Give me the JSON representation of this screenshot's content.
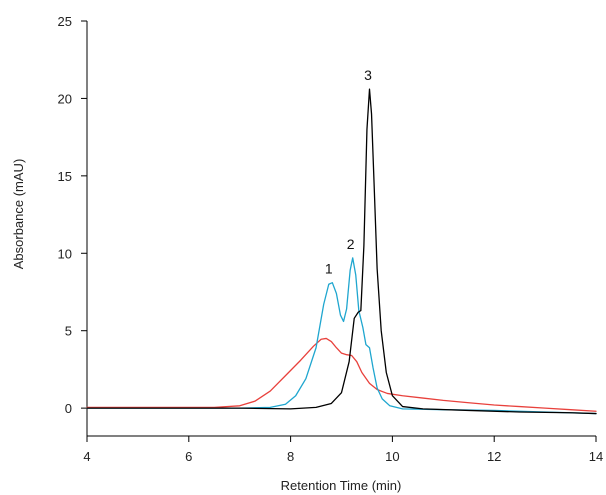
{
  "chart_data": {
    "type": "line",
    "xlabel": "Retention Time (min)",
    "ylabel": "Absorbance (mAU)",
    "xlim": [
      4,
      14
    ],
    "ylim": [
      -1.8,
      25
    ],
    "x_ticks": [
      4,
      6,
      8,
      10,
      12,
      14
    ],
    "y_ticks": [
      0,
      5,
      10,
      15,
      20,
      25
    ],
    "grid": false,
    "series": [
      {
        "color": "#e8413c",
        "points": [
          [
            4.0,
            0.05
          ],
          [
            5.0,
            0.05
          ],
          [
            6.0,
            0.05
          ],
          [
            6.5,
            0.05
          ],
          [
            7.0,
            0.15
          ],
          [
            7.3,
            0.45
          ],
          [
            7.6,
            1.1
          ],
          [
            7.9,
            2.1
          ],
          [
            8.2,
            3.1
          ],
          [
            8.45,
            4.0
          ],
          [
            8.6,
            4.45
          ],
          [
            8.7,
            4.5
          ],
          [
            8.8,
            4.3
          ],
          [
            8.9,
            3.9
          ],
          [
            9.0,
            3.55
          ],
          [
            9.1,
            3.45
          ],
          [
            9.2,
            3.4
          ],
          [
            9.3,
            3.0
          ],
          [
            9.4,
            2.3
          ],
          [
            9.55,
            1.6
          ],
          [
            9.7,
            1.2
          ],
          [
            9.9,
            0.95
          ],
          [
            10.2,
            0.8
          ],
          [
            10.6,
            0.65
          ],
          [
            11.0,
            0.5
          ],
          [
            11.5,
            0.35
          ],
          [
            12.0,
            0.2
          ],
          [
            12.5,
            0.1
          ],
          [
            13.0,
            0.0
          ],
          [
            13.5,
            -0.1
          ],
          [
            14.0,
            -0.2
          ]
        ]
      },
      {
        "color": "#1fa6cf",
        "points": [
          [
            4.0,
            0.0
          ],
          [
            6.0,
            0.0
          ],
          [
            7.0,
            0.0
          ],
          [
            7.6,
            0.05
          ],
          [
            7.9,
            0.25
          ],
          [
            8.1,
            0.8
          ],
          [
            8.3,
            1.9
          ],
          [
            8.5,
            3.9
          ],
          [
            8.65,
            6.7
          ],
          [
            8.75,
            8.0
          ],
          [
            8.82,
            8.1
          ],
          [
            8.9,
            7.4
          ],
          [
            8.98,
            6.0
          ],
          [
            9.04,
            5.6
          ],
          [
            9.1,
            6.4
          ],
          [
            9.17,
            8.9
          ],
          [
            9.22,
            9.7
          ],
          [
            9.28,
            8.6
          ],
          [
            9.34,
            6.3
          ],
          [
            9.42,
            5.2
          ],
          [
            9.48,
            4.1
          ],
          [
            9.55,
            3.9
          ],
          [
            9.62,
            2.6
          ],
          [
            9.7,
            1.3
          ],
          [
            9.8,
            0.6
          ],
          [
            9.95,
            0.15
          ],
          [
            10.2,
            -0.05
          ],
          [
            11.0,
            -0.1
          ],
          [
            12.0,
            -0.15
          ],
          [
            13.0,
            -0.25
          ],
          [
            14.0,
            -0.35
          ]
        ]
      },
      {
        "color": "#000000",
        "points": [
          [
            4.0,
            0.0
          ],
          [
            6.0,
            0.0
          ],
          [
            7.0,
            0.0
          ],
          [
            8.0,
            -0.05
          ],
          [
            8.5,
            0.05
          ],
          [
            8.8,
            0.3
          ],
          [
            9.0,
            1.0
          ],
          [
            9.15,
            3.0
          ],
          [
            9.25,
            5.8
          ],
          [
            9.33,
            6.2
          ],
          [
            9.38,
            6.3
          ],
          [
            9.44,
            10.5
          ],
          [
            9.5,
            18.0
          ],
          [
            9.55,
            20.6
          ],
          [
            9.59,
            19.0
          ],
          [
            9.64,
            14.5
          ],
          [
            9.7,
            9.0
          ],
          [
            9.78,
            5.0
          ],
          [
            9.88,
            2.3
          ],
          [
            10.0,
            0.8
          ],
          [
            10.2,
            0.1
          ],
          [
            10.6,
            -0.05
          ],
          [
            11.5,
            -0.15
          ],
          [
            12.5,
            -0.25
          ],
          [
            13.5,
            -0.3
          ],
          [
            14.0,
            -0.35
          ]
        ]
      }
    ],
    "annotations": [
      {
        "text": "1",
        "x": 8.75,
        "y": 8.1
      },
      {
        "text": "2",
        "x": 9.18,
        "y": 9.7
      },
      {
        "text": "3",
        "x": 9.52,
        "y": 20.6
      }
    ]
  }
}
